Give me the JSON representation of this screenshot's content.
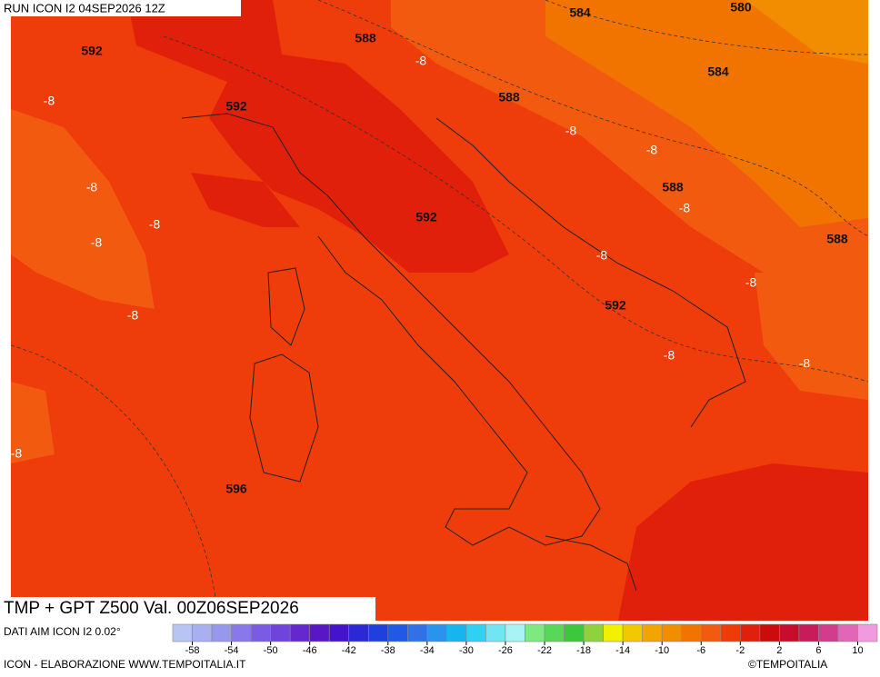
{
  "header": {
    "run": "RUN ICON I2 04SEP2026 12Z",
    "title": "TMP + GPT Z500 Val. 00Z06SEP2026",
    "source": "DATI AIM ICON I2 0.02°",
    "footer": "ICON - ELABORAZIONE WWW.TEMPOITALIA.IT",
    "copyright": "©TEMPOITALIA"
  },
  "contour_labels": [
    "584",
    "580",
    "588",
    "592",
    "-8",
    "584",
    "588",
    "-8",
    "592",
    "-8",
    "-8",
    "-8",
    "588",
    "-8",
    "592",
    "-8",
    "-8",
    "588",
    "-8",
    "-8",
    "592",
    "-8",
    "-8",
    "-8",
    "-8",
    "596"
  ],
  "colorbar": {
    "ticks": [
      -58,
      -54,
      -50,
      -46,
      -42,
      -38,
      -34,
      -30,
      -26,
      -22,
      -18,
      -14,
      -10,
      -6,
      -2,
      2,
      6,
      10
    ],
    "colors": [
      "#b8c4f4",
      "#a8b0f2",
      "#9698ee",
      "#8878ea",
      "#7a5ce4",
      "#6e44dc",
      "#6428cc",
      "#5816c4",
      "#4414cc",
      "#2c28d6",
      "#2040de",
      "#2258e6",
      "#3270e6",
      "#2894ec",
      "#18b4f0",
      "#30d0f2",
      "#70e6f2",
      "#a8f4f4",
      "#80e880",
      "#58d858",
      "#3cc83c",
      "#90d23c",
      "#f0f000",
      "#f2c800",
      "#f2a400",
      "#f28c00",
      "#f27400",
      "#f25a10",
      "#ee3c08",
      "#e0200a",
      "#cc0c0c",
      "#c80c2c",
      "#c81c5a",
      "#d23c8c",
      "#e266b8",
      "#f29ae0"
    ]
  }
}
